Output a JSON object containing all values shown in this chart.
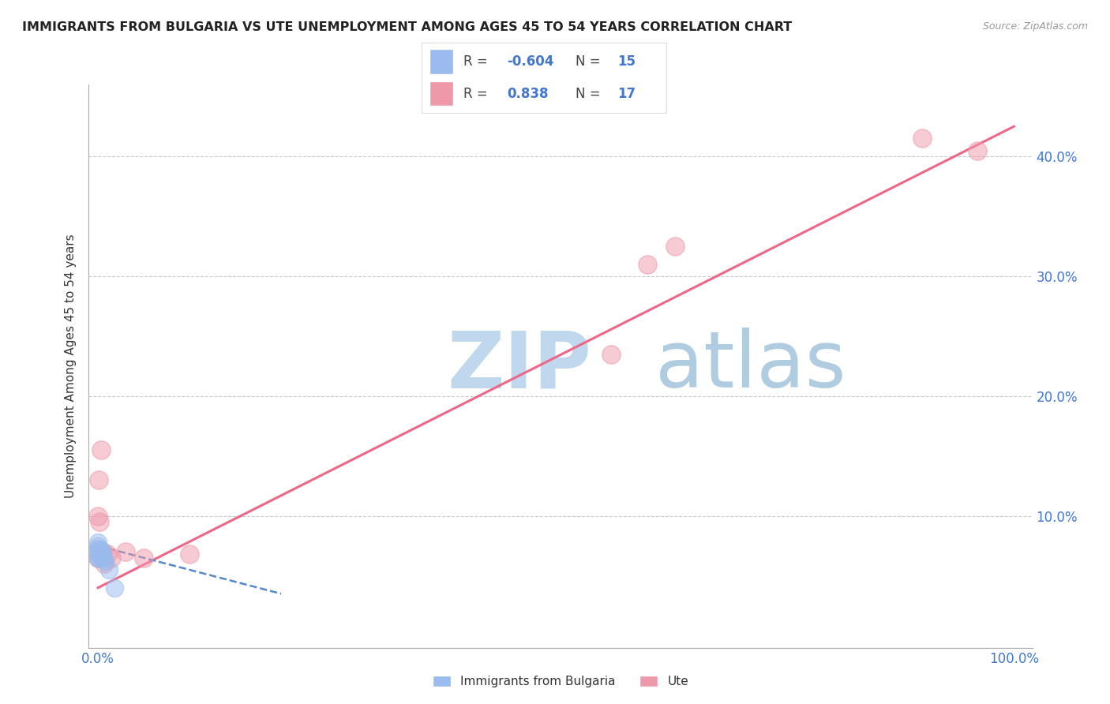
{
  "title": "IMMIGRANTS FROM BULGARIA VS UTE UNEMPLOYMENT AMONG AGES 45 TO 54 YEARS CORRELATION CHART",
  "source_text": "Source: ZipAtlas.com",
  "ylabel": "Unemployment Among Ages 45 to 54 years",
  "xlim": [
    -0.01,
    1.02
  ],
  "ylim": [
    -0.01,
    0.46
  ],
  "xticks": [
    0.0,
    0.25,
    0.5,
    0.75,
    1.0
  ],
  "xtick_labels": [
    "0.0%",
    "",
    "",
    "",
    "100.0%"
  ],
  "yticks": [
    0.0,
    0.1,
    0.2,
    0.3,
    0.4
  ],
  "ytick_labels": [
    "",
    "10.0%",
    "20.0%",
    "30.0%",
    "40.0%"
  ],
  "grid_color": "#cccccc",
  "background_color": "#ffffff",
  "blue_color": "#99bbee",
  "pink_color": "#ee99aa",
  "blue_line_color": "#5588cc",
  "pink_line_color": "#ee6688",
  "legend_R_blue": "-0.604",
  "legend_N_blue": "15",
  "legend_R_pink": "0.838",
  "legend_N_pink": "17",
  "watermark_zip": "ZIP",
  "watermark_atlas": "atlas",
  "watermark_color": "#c8dff0",
  "blue_points_x": [
    0.0,
    0.0,
    0.0,
    0.0,
    0.0,
    0.001,
    0.001,
    0.002,
    0.003,
    0.004,
    0.005,
    0.006,
    0.008,
    0.012,
    0.018
  ],
  "blue_points_y": [
    0.065,
    0.07,
    0.072,
    0.075,
    0.078,
    0.065,
    0.07,
    0.072,
    0.068,
    0.065,
    0.07,
    0.065,
    0.062,
    0.055,
    0.04
  ],
  "pink_points_x": [
    0.0,
    0.0,
    0.001,
    0.002,
    0.003,
    0.005,
    0.007,
    0.01,
    0.015,
    0.03,
    0.05,
    0.1,
    0.56,
    0.6,
    0.63,
    0.9,
    0.96
  ],
  "pink_points_y": [
    0.065,
    0.1,
    0.13,
    0.095,
    0.155,
    0.07,
    0.06,
    0.068,
    0.065,
    0.07,
    0.065,
    0.068,
    0.235,
    0.31,
    0.325,
    0.415,
    0.405
  ],
  "blue_line_x": [
    0.0,
    0.2
  ],
  "blue_line_y": [
    0.075,
    0.035
  ],
  "pink_line_x": [
    0.0,
    1.0
  ],
  "pink_line_y": [
    0.04,
    0.425
  ]
}
